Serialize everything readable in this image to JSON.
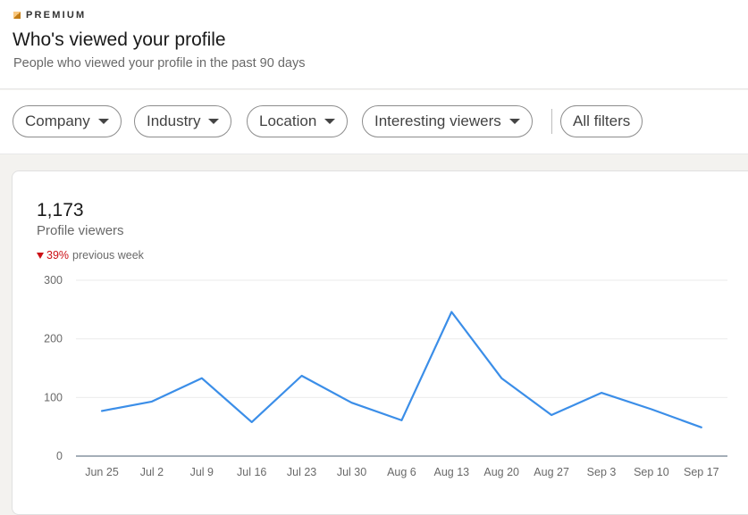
{
  "header": {
    "badge": "PREMIUM",
    "title": "Who's viewed your profile",
    "subtitle": "People who viewed your profile in the past 90 days"
  },
  "filters": [
    {
      "label": "Company",
      "has_caret": true
    },
    {
      "label": "Industry",
      "has_caret": true
    },
    {
      "label": "Location",
      "has_caret": true
    },
    {
      "label": "Interesting viewers",
      "has_caret": true
    },
    {
      "label": "All filters",
      "has_caret": false
    }
  ],
  "stats": {
    "count": "1,173",
    "label": "Profile viewers",
    "change_pct": "39%",
    "change_label": "previous week",
    "change_direction": "down",
    "change_color": "#cc1016"
  },
  "chart_data": {
    "type": "line",
    "categories": [
      "Jun 25",
      "Jul 2",
      "Jul 9",
      "Jul 16",
      "Jul 23",
      "Jul 30",
      "Aug 6",
      "Aug 13",
      "Aug 20",
      "Aug 27",
      "Sep 3",
      "Sep 10",
      "Sep 17"
    ],
    "series": [
      {
        "values": [
          77,
          93,
          133,
          58,
          137,
          91,
          61,
          246,
          133,
          70,
          108,
          80,
          49
        ],
        "color": "#3b8ee8"
      }
    ],
    "yticks": [
      0,
      100,
      200,
      300
    ],
    "ylim": [
      0,
      300
    ],
    "grid": true
  }
}
